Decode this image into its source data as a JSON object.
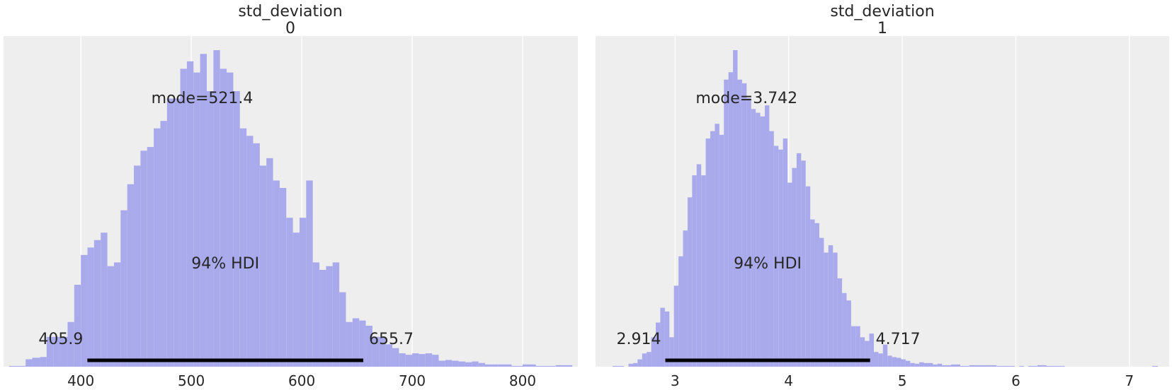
{
  "chart_data": [
    {
      "type": "histogram",
      "title_line1": "std_deviation",
      "title_line2": "0",
      "xlim": [
        330,
        850
      ],
      "xticks": [
        400,
        500,
        600,
        700,
        800
      ],
      "xtick_labels": [
        "400",
        "500",
        "600",
        "700",
        "800"
      ],
      "grid": true,
      "bar_color": "#a9aaec",
      "hdi_color": "#000000",
      "bin_edges": [
        335,
        350,
        356,
        363,
        369,
        375,
        381,
        388,
        394,
        400,
        406,
        412,
        418,
        424,
        430,
        436,
        442,
        448,
        454,
        460,
        466,
        472,
        478,
        484,
        490,
        496,
        502,
        508,
        514,
        520,
        526,
        532,
        538,
        544,
        550,
        556,
        562,
        568,
        574,
        580,
        586,
        592,
        598,
        604,
        610,
        616,
        622,
        628,
        634,
        640,
        646,
        652,
        658,
        664,
        670,
        676,
        682,
        688,
        694,
        700,
        706,
        712,
        718,
        724,
        730,
        736,
        742,
        748,
        754,
        760,
        766,
        772,
        778,
        790,
        800,
        812,
        830,
        845
      ],
      "counts": [
        1,
        10,
        12,
        13,
        40,
        40,
        40,
        60,
        110,
        150,
        160,
        170,
        180,
        135,
        140,
        210,
        245,
        270,
        290,
        295,
        320,
        330,
        360,
        360,
        400,
        410,
        395,
        420,
        370,
        425,
        400,
        395,
        370,
        320,
        310,
        300,
        270,
        280,
        250,
        240,
        200,
        180,
        200,
        250,
        140,
        130,
        135,
        140,
        100,
        60,
        65,
        62,
        55,
        40,
        40,
        30,
        25,
        18,
        16,
        18,
        17,
        18,
        16,
        8,
        9,
        8,
        7,
        6,
        7,
        5,
        3,
        3,
        3,
        1,
        3,
        1,
        2
      ],
      "mode_label": "mode=521.4",
      "hdi_label": "94% HDI",
      "hdi_low_label": "405.9",
      "hdi_high_label": "655.7",
      "hdi": [
        405.9,
        655.7
      ]
    },
    {
      "type": "histogram",
      "title_line1": "std_deviation",
      "title_line2": "1",
      "xlim": [
        2.3,
        7.35
      ],
      "xticks": [
        3,
        4,
        5,
        6,
        7
      ],
      "xtick_labels": [
        "3",
        "4",
        "5",
        "6",
        "7"
      ],
      "grid": true,
      "bar_color": "#a9aaec",
      "hdi_color": "#000000",
      "bin_edges": [
        2.45,
        2.5,
        2.55,
        2.59,
        2.63,
        2.67,
        2.71,
        2.75,
        2.79,
        2.83,
        2.87,
        2.91,
        2.95,
        2.99,
        3.03,
        3.07,
        3.11,
        3.15,
        3.19,
        3.23,
        3.27,
        3.31,
        3.35,
        3.39,
        3.43,
        3.47,
        3.51,
        3.55,
        3.59,
        3.63,
        3.67,
        3.71,
        3.75,
        3.79,
        3.83,
        3.87,
        3.91,
        3.95,
        3.99,
        4.03,
        4.07,
        4.11,
        4.15,
        4.19,
        4.23,
        4.27,
        4.31,
        4.35,
        4.39,
        4.43,
        4.47,
        4.51,
        4.55,
        4.59,
        4.63,
        4.67,
        4.71,
        4.75,
        4.79,
        4.83,
        4.87,
        4.91,
        4.95,
        4.99,
        5.03,
        5.07,
        5.11,
        5.15,
        5.19,
        5.23,
        5.27,
        5.31,
        5.35,
        5.43,
        5.51,
        5.59,
        5.67,
        5.75,
        5.83,
        5.91,
        5.99,
        6.03,
        6.07,
        6.11,
        6.19,
        6.27,
        6.35,
        6.43,
        6.55,
        6.65,
        7.2,
        7.25
      ],
      "counts": [
        1,
        1,
        0,
        4,
        5,
        10,
        18,
        20,
        40,
        60,
        80,
        75,
        40,
        110,
        150,
        185,
        230,
        260,
        275,
        260,
        310,
        320,
        330,
        315,
        390,
        400,
        430,
        390,
        385,
        365,
        350,
        345,
        340,
        355,
        320,
        300,
        295,
        310,
        250,
        270,
        290,
        280,
        245,
        200,
        195,
        175,
        155,
        165,
        155,
        120,
        100,
        90,
        55,
        55,
        40,
        35,
        45,
        20,
        18,
        30,
        15,
        13,
        12,
        10,
        8,
        5,
        4,
        6,
        5,
        5,
        3,
        4,
        2,
        3,
        1,
        2,
        2,
        2,
        1,
        1,
        0,
        1,
        0,
        1,
        2,
        1,
        1,
        0,
        0,
        0,
        1
      ],
      "mode_label": "mode=3.742",
      "hdi_label": "94% HDI",
      "hdi_low_label": "2.914",
      "hdi_high_label": "4.717",
      "hdi": [
        2.914,
        4.717
      ]
    }
  ]
}
